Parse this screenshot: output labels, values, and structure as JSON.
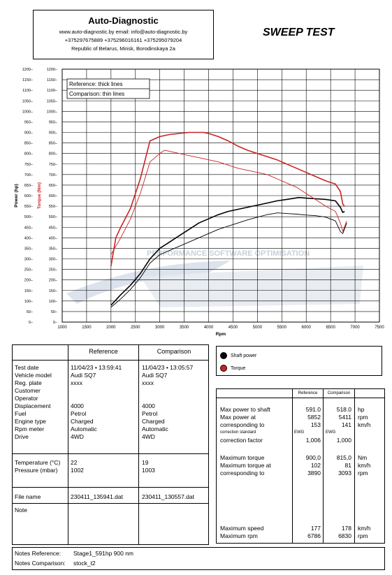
{
  "header": {
    "company": "Auto-Diagnostic",
    "website_line": "www.auto-diagnostic.by        email: info@auto-diagnostic.by",
    "phones": "+375297675889  +375296016161  +375295079204",
    "address": "Republic of Belarus, Minsk, Borodinskaya 2a"
  },
  "title": "SWEEP TEST",
  "chart_data": {
    "type": "line",
    "xlabel": "Rpm",
    "ylabel_power": "Power (hp)",
    "ylabel_torque": "Torque (Nm)",
    "xlim": [
      1000,
      7500
    ],
    "ylim": [
      0,
      1200
    ],
    "x_ticks": [
      1000,
      1500,
      2000,
      2500,
      3000,
      3500,
      4000,
      4500,
      5000,
      5500,
      6000,
      6500,
      7000,
      7500
    ],
    "y_ticks": [
      0,
      50,
      100,
      150,
      200,
      250,
      300,
      350,
      400,
      450,
      500,
      550,
      600,
      650,
      700,
      750,
      800,
      850,
      900,
      950,
      1000,
      1050,
      1100,
      1150,
      1200
    ],
    "grid": true,
    "annotation_reference": "Reference: thick lines",
    "annotation_comparison": "Comparison: thin lines",
    "watermark_main": "",
    "watermark_sub": "PERFORMANCE SOFTWARE OPTIMISATION",
    "series": [
      {
        "name": "Shaft power",
        "variant": "Reference",
        "color": "#000000",
        "width": 1.6,
        "x": [
          2000,
          2200,
          2400,
          2600,
          2800,
          3000,
          3200,
          3400,
          3600,
          3800,
          4000,
          4200,
          4400,
          4600,
          4800,
          5000,
          5200,
          5400,
          5600,
          5852,
          6000,
          6200,
          6400,
          6600,
          6700,
          6750,
          6786
        ],
        "y": [
          80,
          130,
          175,
          230,
          300,
          350,
          380,
          410,
          440,
          470,
          490,
          510,
          525,
          535,
          545,
          555,
          565,
          575,
          582,
          591,
          588,
          585,
          582,
          575,
          545,
          520,
          525
        ]
      },
      {
        "name": "Shaft power",
        "variant": "Comparison",
        "color": "#000000",
        "width": 0.9,
        "x": [
          2000,
          2200,
          2400,
          2600,
          2800,
          3000,
          3200,
          3400,
          3600,
          3800,
          4000,
          4200,
          4400,
          4600,
          4800,
          5000,
          5200,
          5411,
          5600,
          5800,
          6000,
          6200,
          6400,
          6600,
          6700,
          6750,
          6830
        ],
        "y": [
          70,
          110,
          155,
          210,
          280,
          320,
          340,
          360,
          380,
          400,
          420,
          440,
          455,
          470,
          485,
          498,
          510,
          518,
          515,
          512,
          508,
          505,
          498,
          480,
          430,
          420,
          470
        ]
      },
      {
        "name": "Torque",
        "variant": "Reference",
        "color": "#cc2222",
        "width": 1.6,
        "x": [
          2000,
          2100,
          2200,
          2400,
          2600,
          2800,
          3000,
          3200,
          3400,
          3600,
          3890,
          4000,
          4200,
          4400,
          4600,
          4800,
          5000,
          5200,
          5400,
          5600,
          5800,
          6000,
          6200,
          6400,
          6600,
          6700,
          6750,
          6786
        ],
        "y": [
          265,
          400,
          450,
          540,
          680,
          860,
          880,
          890,
          895,
          900,
          900,
          895,
          880,
          860,
          835,
          815,
          800,
          785,
          770,
          750,
          730,
          710,
          690,
          670,
          655,
          620,
          560,
          550
        ]
      },
      {
        "name": "Torque",
        "variant": "Comparison",
        "color": "#cc2222",
        "width": 0.9,
        "x": [
          2000,
          2200,
          2400,
          2600,
          2800,
          3000,
          3093,
          3200,
          3400,
          3600,
          3800,
          4000,
          4200,
          4400,
          4600,
          4800,
          5000,
          5200,
          5400,
          5600,
          5800,
          6000,
          6200,
          6400,
          6600,
          6700,
          6750,
          6830
        ],
        "y": [
          320,
          400,
          490,
          610,
          760,
          800,
          815,
          810,
          800,
          790,
          780,
          770,
          760,
          745,
          730,
          720,
          710,
          700,
          680,
          660,
          640,
          610,
          580,
          550,
          525,
          470,
          430,
          480
        ]
      }
    ]
  },
  "legend": {
    "shaft_power": "Shaft power",
    "torque": "Torque"
  },
  "info": {
    "col_reference": "Reference",
    "col_comparison": "Comparison",
    "labels": [
      "Test date",
      "Vehicle model",
      "Reg. plate",
      "Customer",
      "Operator",
      "Displacement",
      "Fuel",
      "Engine type",
      "Rpm meter",
      "Drive"
    ],
    "reference": [
      "11/04/23 • 13:59:41",
      "Audi SQ7",
      "xxxx",
      "",
      "",
      "4000",
      "Petrol",
      "Charged",
      "Automatic",
      "4WD"
    ],
    "comparison": [
      "11/04/23 • 13:05:57",
      "Audi SQ7",
      "xxxx",
      "",
      "",
      "4000",
      "Petrol",
      "Charged",
      "Automatic",
      "4WD"
    ],
    "temp_label": "Temperature (°C)",
    "pressure_label": "Pressure (mbar)",
    "temp_ref": "22",
    "temp_cmp": "19",
    "pressure_ref": "1002",
    "pressure_cmp": "1003",
    "file_label": "File name",
    "file_ref": "230411_135941.dat",
    "file_cmp": "230411_130557.dat",
    "note_label": "Note"
  },
  "results": {
    "col_reference": "Reference",
    "col_comparison": "Comparison",
    "rows1": [
      {
        "label": "Max power to shaft",
        "ref": "591.0",
        "cmp": "518.0",
        "unit": "hp"
      },
      {
        "label": "Max power at",
        "ref": "5852",
        "cmp": "5411",
        "unit": "rpm"
      },
      {
        "label": "corresponding to",
        "ref": "153",
        "cmp": "141",
        "unit": "km/h"
      }
    ],
    "correction_std_label": "correction standard",
    "correction_std_ref": "EWG",
    "correction_std_cmp": "EWG",
    "correction_factor_label": "correction factor",
    "correction_factor_ref": "1,006",
    "correction_factor_cmp": "1,000",
    "rows2": [
      {
        "label": "Maximum torque",
        "ref": "900,0",
        "cmp": "815,0",
        "unit": "Nm"
      },
      {
        "label": "Maximum torque at",
        "ref": "102",
        "cmp": "81",
        "unit": "km/h"
      },
      {
        "label": "corresponding to",
        "ref": "3890",
        "cmp": "3093",
        "unit": "rpm"
      }
    ],
    "rows3": [
      {
        "label": "Maximum speed",
        "ref": "177",
        "cmp": "178",
        "unit": "km/h"
      },
      {
        "label": "Maximum rpm",
        "ref": "6786",
        "cmp": "6830",
        "unit": "rpm"
      }
    ]
  },
  "notes": {
    "ref_label": "Notes Reference:",
    "ref_value": "Stage1_591hp 900 nm",
    "cmp_label": "Notes Comparison:",
    "cmp_value": "stock_t2"
  }
}
